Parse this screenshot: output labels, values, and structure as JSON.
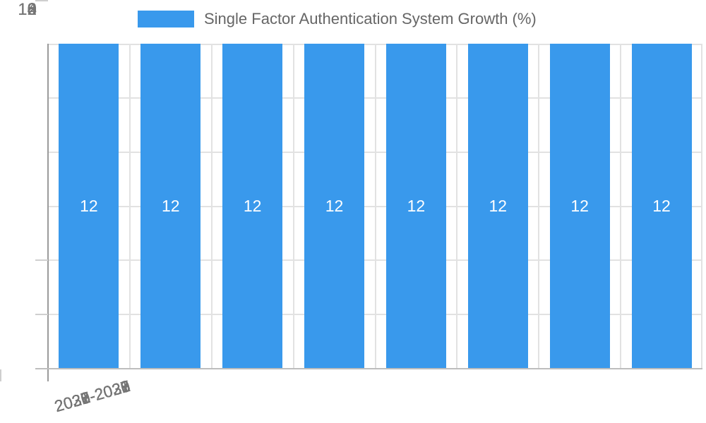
{
  "chart_data": {
    "type": "bar",
    "title": "Single Factor Authentication System Growth (%)",
    "legend": {
      "position": "top",
      "label": "Single Factor Authentication System Growth (%)"
    },
    "categories": [
      "2025-2026",
      "2026-2027",
      "2027-2028",
      "2028-2029",
      "2029-2030",
      "2030-2031",
      "2031-2032",
      "2032-2033"
    ],
    "values": [
      12,
      12,
      12,
      12,
      12,
      12,
      12,
      12
    ],
    "bar_value_labels_shown": true,
    "xlabel": "",
    "ylabel": "",
    "ylim": [
      0,
      12
    ],
    "ytick_labels": [
      "0",
      "2",
      "4",
      "6",
      "8",
      "10",
      "12"
    ],
    "grid": true,
    "xtick_rotation_deg": -16,
    "colors": {
      "bar": "#3999EC",
      "bar_value_label": "#FFFFFF",
      "gridline": "#E2E2E2",
      "y_axis_line": "#9B9B9B",
      "x_axis_line": "#BDBDBD",
      "tick_label": "#757575",
      "legend_text": "#666666"
    }
  }
}
